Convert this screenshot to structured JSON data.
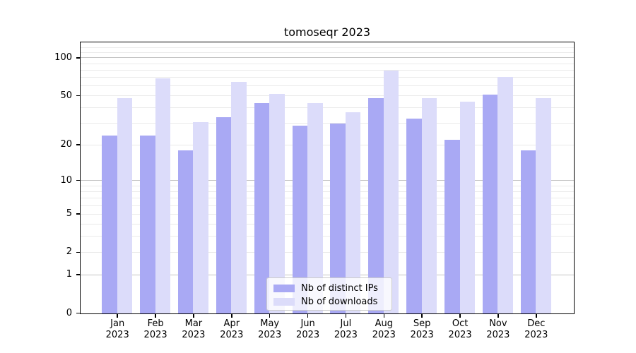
{
  "chart_data": {
    "type": "bar",
    "title": "tomoseqr 2023",
    "categories": [
      "Jan",
      "Feb",
      "Mar",
      "Apr",
      "May",
      "Jun",
      "Jul",
      "Aug",
      "Sep",
      "Oct",
      "Nov",
      "Dec"
    ],
    "year_label": "2023",
    "series": [
      {
        "name": "Nb of distinct IPs",
        "color": "#a9a9f4",
        "values": [
          24,
          24,
          18,
          34,
          44,
          29,
          30,
          48,
          33,
          22,
          51,
          18
        ]
      },
      {
        "name": "Nb of downloads",
        "color": "#dcdcfa",
        "values": [
          48,
          69,
          31,
          65,
          52,
          44,
          37,
          80,
          48,
          45,
          71,
          48
        ]
      }
    ],
    "yscale": "log1p",
    "ylim": [
      0,
      131
    ],
    "y_tick_labels": [
      "0",
      "1",
      "2",
      "5",
      "10",
      "20",
      "50",
      "100"
    ],
    "y_tick_values": [
      0,
      1,
      2,
      5,
      10,
      20,
      50,
      100
    ],
    "grid_major_values": [
      1,
      10,
      100
    ],
    "grid_minor_values": [
      2,
      3,
      4,
      5,
      6,
      7,
      8,
      9,
      20,
      30,
      40,
      50,
      60,
      70,
      80,
      90,
      110,
      120
    ],
    "legend_position": "lower center",
    "colors": {
      "background": "#ffffff",
      "spine": "#000000",
      "grid_major": "#c3c3c3",
      "grid_minor": "#eaeaea",
      "tick_text": "#000000",
      "legend_border": "#cccccc"
    }
  }
}
